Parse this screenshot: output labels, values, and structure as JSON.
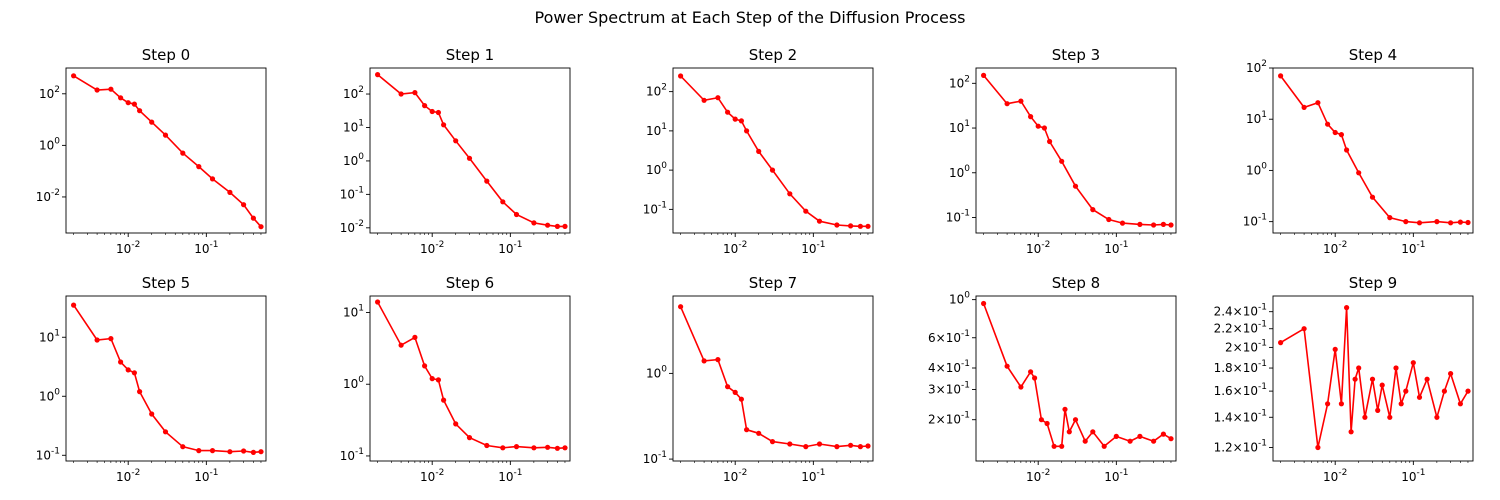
{
  "figure": {
    "suptitle": "Power Spectrum at Each Step of the Diffusion Process",
    "line_color": "#ff0000"
  },
  "chart_data": [
    {
      "type": "line",
      "title": "Step 0",
      "xscale": "log",
      "yscale": "log",
      "xlim": [
        0.0016,
        0.58
      ],
      "ylim": [
        0.0004,
        1000
      ],
      "xticks": [
        {
          "value": 0.01,
          "label": "10^-2"
        },
        {
          "value": 0.1,
          "label": "10^-1"
        }
      ],
      "yticks": [
        {
          "value": 0.01,
          "label": "10^-2"
        },
        {
          "value": 1,
          "label": "10^0"
        },
        {
          "value": 100,
          "label": "10^2"
        }
      ],
      "x": [
        0.002,
        0.004,
        0.006,
        0.008,
        0.01,
        0.012,
        0.014,
        0.02,
        0.03,
        0.05,
        0.08,
        0.12,
        0.2,
        0.3,
        0.4,
        0.5
      ],
      "y": [
        500,
        140,
        150,
        70,
        45,
        40,
        22,
        8,
        2.5,
        0.5,
        0.15,
        0.05,
        0.015,
        0.005,
        0.0015,
        0.0007
      ]
    },
    {
      "type": "line",
      "title": "Step 1",
      "xscale": "log",
      "yscale": "log",
      "xlim": [
        0.0016,
        0.58
      ],
      "ylim": [
        0.007,
        600
      ],
      "xticks": [
        {
          "value": 0.01,
          "label": "10^-2"
        },
        {
          "value": 0.1,
          "label": "10^-1"
        }
      ],
      "yticks": [
        {
          "value": 0.01,
          "label": "10^-2"
        },
        {
          "value": 0.1,
          "label": "10^-1"
        },
        {
          "value": 1,
          "label": "10^0"
        },
        {
          "value": 10,
          "label": "10^1"
        },
        {
          "value": 100,
          "label": "10^2"
        }
      ],
      "x": [
        0.002,
        0.004,
        0.006,
        0.008,
        0.01,
        0.012,
        0.014,
        0.02,
        0.03,
        0.05,
        0.08,
        0.12,
        0.2,
        0.3,
        0.4,
        0.5
      ],
      "y": [
        380,
        100,
        110,
        45,
        30,
        28,
        12,
        4,
        1.2,
        0.25,
        0.06,
        0.025,
        0.014,
        0.012,
        0.011,
        0.011
      ]
    },
    {
      "type": "line",
      "title": "Step 2",
      "xscale": "log",
      "yscale": "log",
      "xlim": [
        0.0016,
        0.58
      ],
      "ylim": [
        0.025,
        400
      ],
      "xticks": [
        {
          "value": 0.01,
          "label": "10^-2"
        },
        {
          "value": 0.1,
          "label": "10^-1"
        }
      ],
      "yticks": [
        {
          "value": 0.1,
          "label": "10^-1"
        },
        {
          "value": 1,
          "label": "10^0"
        },
        {
          "value": 10,
          "label": "10^1"
        },
        {
          "value": 100,
          "label": "10^2"
        }
      ],
      "x": [
        0.002,
        0.004,
        0.006,
        0.008,
        0.01,
        0.012,
        0.014,
        0.02,
        0.03,
        0.05,
        0.08,
        0.12,
        0.2,
        0.3,
        0.4,
        0.5
      ],
      "y": [
        250,
        60,
        70,
        30,
        20,
        18,
        10,
        3,
        1,
        0.25,
        0.09,
        0.05,
        0.04,
        0.038,
        0.037,
        0.037
      ]
    },
    {
      "type": "line",
      "title": "Step 3",
      "xscale": "log",
      "yscale": "log",
      "xlim": [
        0.0016,
        0.58
      ],
      "ylim": [
        0.045,
        220
      ],
      "xticks": [
        {
          "value": 0.01,
          "label": "10^-2"
        },
        {
          "value": 0.1,
          "label": "10^-1"
        }
      ],
      "yticks": [
        {
          "value": 0.1,
          "label": "10^-1"
        },
        {
          "value": 1,
          "label": "10^0"
        },
        {
          "value": 10,
          "label": "10^1"
        },
        {
          "value": 100,
          "label": "10^2"
        }
      ],
      "x": [
        0.002,
        0.004,
        0.006,
        0.008,
        0.01,
        0.012,
        0.014,
        0.02,
        0.03,
        0.05,
        0.08,
        0.12,
        0.2,
        0.3,
        0.4,
        0.5
      ],
      "y": [
        150,
        35,
        40,
        18,
        11,
        10,
        5,
        1.8,
        0.5,
        0.15,
        0.09,
        0.075,
        0.07,
        0.068,
        0.07,
        0.068
      ]
    },
    {
      "type": "line",
      "title": "Step 4",
      "xscale": "log",
      "yscale": "log",
      "xlim": [
        0.0016,
        0.58
      ],
      "ylim": [
        0.06,
        100
      ],
      "xticks": [
        {
          "value": 0.01,
          "label": "10^-2"
        },
        {
          "value": 0.1,
          "label": "10^-1"
        }
      ],
      "yticks": [
        {
          "value": 0.1,
          "label": "10^-1"
        },
        {
          "value": 1,
          "label": "10^0"
        },
        {
          "value": 10,
          "label": "10^1"
        },
        {
          "value": 100,
          "label": "10^2"
        }
      ],
      "x": [
        0.002,
        0.004,
        0.006,
        0.008,
        0.01,
        0.012,
        0.014,
        0.02,
        0.03,
        0.05,
        0.08,
        0.12,
        0.2,
        0.3,
        0.4,
        0.5
      ],
      "y": [
        70,
        17,
        21,
        8,
        5.5,
        5,
        2.5,
        0.9,
        0.3,
        0.12,
        0.1,
        0.095,
        0.1,
        0.095,
        0.098,
        0.096
      ]
    },
    {
      "type": "line",
      "title": "Step 5",
      "xscale": "log",
      "yscale": "log",
      "xlim": [
        0.0016,
        0.58
      ],
      "ylim": [
        0.08,
        50
      ],
      "xticks": [
        {
          "value": 0.01,
          "label": "10^-2"
        },
        {
          "value": 0.1,
          "label": "10^-1"
        }
      ],
      "yticks": [
        {
          "value": 0.1,
          "label": "10^-1"
        },
        {
          "value": 1,
          "label": "10^0"
        },
        {
          "value": 10,
          "label": "10^1"
        }
      ],
      "x": [
        0.002,
        0.004,
        0.006,
        0.008,
        0.01,
        0.012,
        0.014,
        0.02,
        0.03,
        0.05,
        0.08,
        0.12,
        0.2,
        0.3,
        0.4,
        0.5
      ],
      "y": [
        35,
        9,
        9.5,
        3.8,
        2.8,
        2.5,
        1.2,
        0.5,
        0.25,
        0.14,
        0.12,
        0.12,
        0.115,
        0.118,
        0.112,
        0.115
      ]
    },
    {
      "type": "line",
      "title": "Step 6",
      "xscale": "log",
      "yscale": "log",
      "xlim": [
        0.0016,
        0.58
      ],
      "ylim": [
        0.085,
        17
      ],
      "xticks": [
        {
          "value": 0.01,
          "label": "10^-2"
        },
        {
          "value": 0.1,
          "label": "10^-1"
        }
      ],
      "yticks": [
        {
          "value": 0.1,
          "label": "10^-1"
        },
        {
          "value": 1,
          "label": "10^0"
        },
        {
          "value": 10,
          "label": "10^1"
        }
      ],
      "x": [
        0.002,
        0.004,
        0.006,
        0.008,
        0.01,
        0.012,
        0.014,
        0.02,
        0.03,
        0.05,
        0.08,
        0.12,
        0.2,
        0.3,
        0.4,
        0.5
      ],
      "y": [
        14,
        3.5,
        4.5,
        1.8,
        1.2,
        1.15,
        0.6,
        0.28,
        0.18,
        0.14,
        0.13,
        0.135,
        0.13,
        0.132,
        0.128,
        0.13
      ]
    },
    {
      "type": "line",
      "title": "Step 7",
      "xscale": "log",
      "yscale": "log",
      "xlim": [
        0.0016,
        0.58
      ],
      "ylim": [
        0.095,
        8
      ],
      "xticks": [
        {
          "value": 0.01,
          "label": "10^-2"
        },
        {
          "value": 0.1,
          "label": "10^-1"
        }
      ],
      "yticks": [
        {
          "value": 0.1,
          "label": "10^-1"
        },
        {
          "value": 1,
          "label": "10^0"
        }
      ],
      "x": [
        0.002,
        0.004,
        0.006,
        0.008,
        0.01,
        0.012,
        0.014,
        0.02,
        0.03,
        0.05,
        0.08,
        0.12,
        0.2,
        0.3,
        0.4,
        0.5
      ],
      "y": [
        6,
        1.4,
        1.45,
        0.7,
        0.6,
        0.5,
        0.22,
        0.2,
        0.16,
        0.15,
        0.14,
        0.15,
        0.14,
        0.145,
        0.14,
        0.142
      ]
    },
    {
      "type": "line",
      "title": "Step 8",
      "xscale": "log",
      "yscale": "log",
      "xlim": [
        0.0016,
        0.58
      ],
      "ylim": [
        0.115,
        1.05
      ],
      "xticks": [
        {
          "value": 0.01,
          "label": "10^-2"
        },
        {
          "value": 0.1,
          "label": "10^-1"
        }
      ],
      "yticks": [
        {
          "value": 0.2,
          "label": "2×10^-1"
        },
        {
          "value": 0.3,
          "label": "3×10^-1"
        },
        {
          "value": 0.4,
          "label": "4×10^-1"
        },
        {
          "value": 0.6,
          "label": "6×10^-1"
        },
        {
          "value": 1,
          "label": "10^0"
        }
      ],
      "x": [
        0.002,
        0.004,
        0.006,
        0.008,
        0.009,
        0.011,
        0.013,
        0.016,
        0.02,
        0.022,
        0.025,
        0.03,
        0.04,
        0.05,
        0.07,
        0.1,
        0.15,
        0.2,
        0.3,
        0.4,
        0.5
      ],
      "y": [
        0.95,
        0.41,
        0.31,
        0.38,
        0.35,
        0.2,
        0.19,
        0.14,
        0.14,
        0.23,
        0.17,
        0.2,
        0.15,
        0.17,
        0.14,
        0.16,
        0.15,
        0.16,
        0.15,
        0.165,
        0.155
      ]
    },
    {
      "type": "line",
      "title": "Step 9",
      "xscale": "log",
      "yscale": "log",
      "xlim": [
        0.0016,
        0.58
      ],
      "ylim": [
        0.112,
        0.26
      ],
      "xticks": [
        {
          "value": 0.01,
          "label": "10^-2"
        },
        {
          "value": 0.1,
          "label": "10^-1"
        }
      ],
      "yticks": [
        {
          "value": 0.12,
          "label": "1.2×10^-1"
        },
        {
          "value": 0.14,
          "label": "1.4×10^-1"
        },
        {
          "value": 0.16,
          "label": "1.6×10^-1"
        },
        {
          "value": 0.18,
          "label": "1.8×10^-1"
        },
        {
          "value": 0.2,
          "label": "2×10^-1"
        },
        {
          "value": 0.22,
          "label": "2.2×10^-1"
        },
        {
          "value": 0.24,
          "label": "2.4×10^-1"
        }
      ],
      "x": [
        0.002,
        0.004,
        0.006,
        0.008,
        0.01,
        0.012,
        0.014,
        0.016,
        0.018,
        0.02,
        0.024,
        0.03,
        0.035,
        0.04,
        0.05,
        0.06,
        0.07,
        0.08,
        0.1,
        0.12,
        0.15,
        0.2,
        0.25,
        0.3,
        0.4,
        0.5
      ],
      "y": [
        0.205,
        0.22,
        0.12,
        0.15,
        0.198,
        0.15,
        0.245,
        0.13,
        0.17,
        0.18,
        0.14,
        0.17,
        0.145,
        0.165,
        0.14,
        0.18,
        0.15,
        0.16,
        0.185,
        0.155,
        0.17,
        0.14,
        0.16,
        0.175,
        0.15,
        0.16
      ]
    }
  ]
}
